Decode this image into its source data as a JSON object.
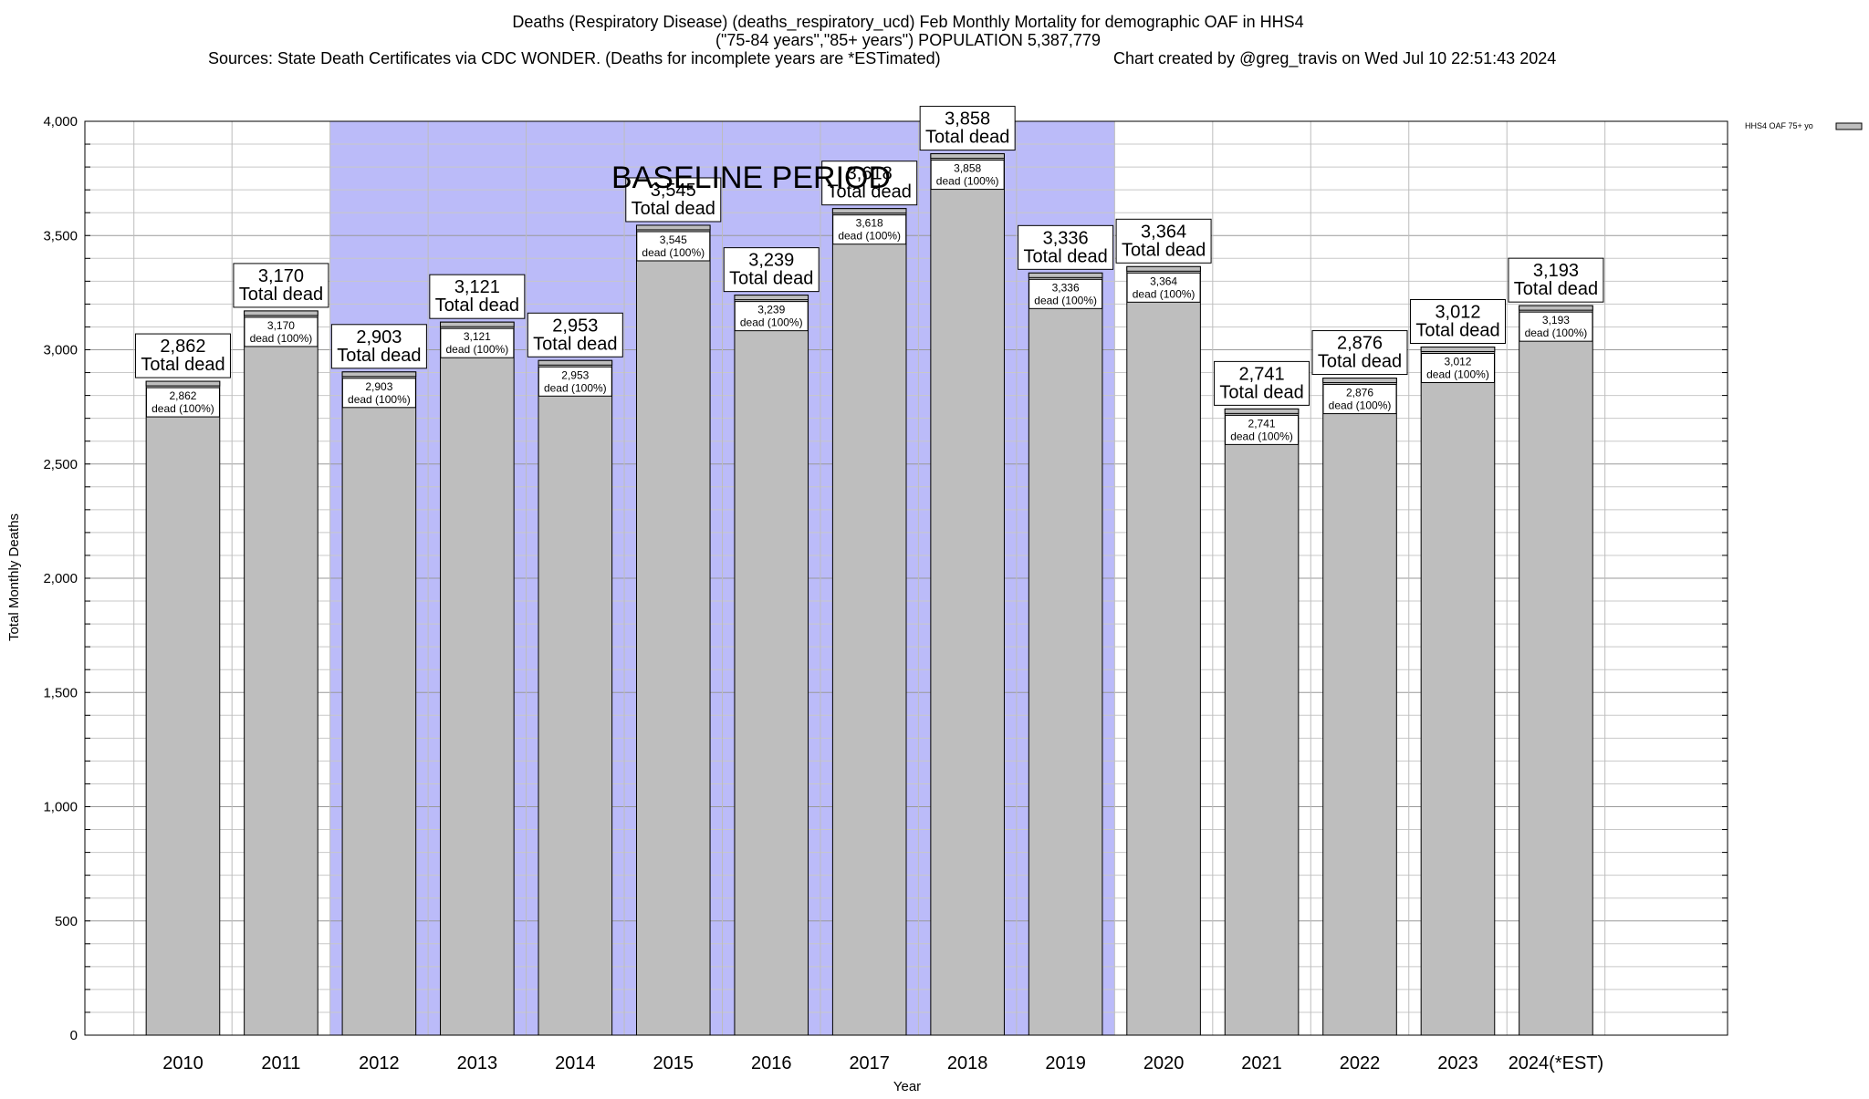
{
  "chart_data": {
    "type": "bar",
    "title_lines": [
      "Deaths (Respiratory Disease) (deaths_respiratory_ucd) Feb Monthly Mortality for demographic OAF in HHS4",
      "(\"75-84 years\",\"85+ years\") POPULATION 5,387,779"
    ],
    "source_text": "Sources: State Death Certificates via CDC WONDER. (Deaths for incomplete years are *ESTimated)",
    "credit_text": "Chart created by @greg_travis on Wed Jul 10 22:51:43 2024",
    "xlabel": "Year",
    "ylabel": "Total Monthly Deaths",
    "ylim": [
      0,
      4000
    ],
    "y_ticks": [
      0,
      500,
      1000,
      1500,
      2000,
      2500,
      3000,
      3500,
      4000
    ],
    "y_tick_labels": [
      "0",
      "500",
      "1,000",
      "1,500",
      "2,000",
      "2,500",
      "3,000",
      "3,500",
      "4,000"
    ],
    "categories": [
      "2010",
      "2011",
      "2012",
      "2013",
      "2014",
      "2015",
      "2016",
      "2017",
      "2018",
      "2019",
      "2020",
      "2021",
      "2022",
      "2023",
      "2024(*EST)"
    ],
    "series": [
      {
        "name": "HHS4 OAF 75+ yo",
        "color": "#bebebe",
        "values": [
          2862,
          3170,
          2903,
          3121,
          2953,
          3545,
          3239,
          3618,
          3858,
          3336,
          3364,
          2741,
          2876,
          3012,
          3193
        ]
      }
    ],
    "value_labels": [
      "2,862",
      "3,170",
      "2,903",
      "3,121",
      "2,953",
      "3,545",
      "3,239",
      "3,618",
      "3,858",
      "3,336",
      "3,364",
      "2,741",
      "2,876",
      "3,012",
      "3,193"
    ],
    "total_label_text": "Total dead",
    "inner_label_text": "dead (100%)",
    "baseline": {
      "label": "BASELINE PERIOD",
      "start": "2012",
      "end": "2019",
      "color": "#bbbbf9"
    },
    "legend": {
      "label": "HHS4 OAF 75+ yo",
      "position": "top-right"
    },
    "grid": true
  }
}
